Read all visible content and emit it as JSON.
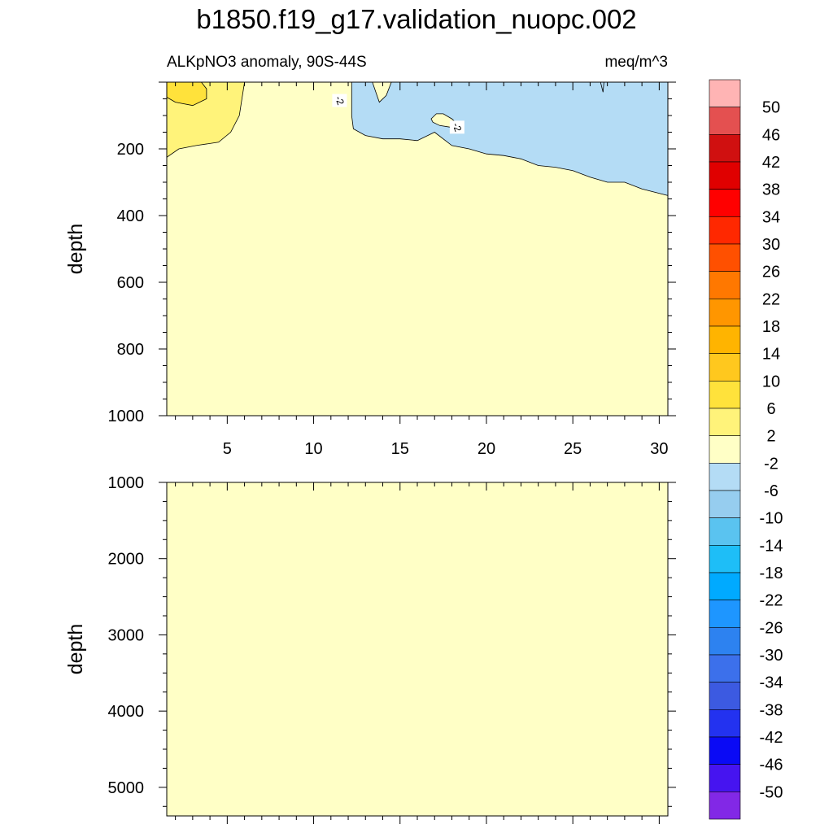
{
  "title": "b1850.f19_g17.validation_nuopc.002",
  "chart_data": {
    "type": "heatmap",
    "title": "b1850.f19_g17.validation_nuopc.002",
    "subtitle_left": "ALKpNO3 anomaly, 90S-44S",
    "subtitle_right": "meq/m^3",
    "colors": {
      "pale_yellow": "#ffffc6",
      "light_yellow": "#fff37a",
      "yellow": "#ffe23b",
      "light_blue": "#b4dcf5",
      "contour": "#000000"
    },
    "panels": [
      {
        "name": "upper",
        "ylabel": "depth",
        "xlim": [
          1.5,
          30.5
        ],
        "ylim": [
          0,
          1000
        ],
        "y_inverted": true,
        "xticks": [
          5,
          10,
          15,
          20,
          25,
          30
        ],
        "xtick_labels": [
          "5",
          "10",
          "15",
          "20",
          "25",
          "30"
        ],
        "yticks": [
          200,
          400,
          600,
          800,
          1000
        ],
        "ytick_labels": [
          "200",
          "400",
          "600",
          "800",
          "1000"
        ],
        "background_range": "-2 to 2",
        "contour_labels": [
          {
            "text": "-2",
            "x": 11.5,
            "y": 55
          },
          {
            "text": "-2",
            "x": 18.3,
            "y": 135
          }
        ],
        "regions": [
          {
            "range": "-6 to -2",
            "points": [
              [
                12.2,
                0
              ],
              [
                30.5,
                0
              ],
              [
                30.5,
                340
              ],
              [
                29,
                320
              ],
              [
                28,
                300
              ],
              [
                27,
                300
              ],
              [
                26,
                285
              ],
              [
                25,
                265
              ],
              [
                24,
                255
              ],
              [
                23,
                250
              ],
              [
                22,
                230
              ],
              [
                21,
                220
              ],
              [
                20,
                215
              ],
              [
                19,
                200
              ],
              [
                18,
                190
              ],
              [
                17,
                150
              ],
              [
                16,
                175
              ],
              [
                15,
                170
              ],
              [
                14,
                170
              ],
              [
                13,
                160
              ],
              [
                12.3,
                140
              ],
              [
                12.2,
                100
              ]
            ]
          },
          {
            "range": "-2 to 2",
            "points": [
              [
                13.4,
                0
              ],
              [
                14.5,
                0
              ],
              [
                14.2,
                40
              ],
              [
                13.8,
                60
              ],
              [
                13.6,
                30
              ]
            ]
          },
          {
            "range": "-2 to 2",
            "points": [
              [
                16.8,
                110
              ],
              [
                17.1,
                95
              ],
              [
                17.5,
                95
              ],
              [
                18.0,
                110
              ],
              [
                18.3,
                125
              ],
              [
                17.9,
                135
              ],
              [
                17.3,
                130
              ],
              [
                16.9,
                120
              ]
            ]
          },
          {
            "range": "2 to 6",
            "points": [
              [
                1.5,
                0
              ],
              [
                6.0,
                0
              ],
              [
                5.7,
                100
              ],
              [
                5.2,
                150
              ],
              [
                4.5,
                180
              ],
              [
                3.2,
                190
              ],
              [
                2.2,
                200
              ],
              [
                1.5,
                225
              ]
            ]
          },
          {
            "range": "6 to 10",
            "points": [
              [
                1.5,
                0
              ],
              [
                3.5,
                0
              ],
              [
                3.8,
                20
              ],
              [
                3.8,
                50
              ],
              [
                3.0,
                70
              ],
              [
                2.0,
                60
              ],
              [
                1.5,
                45
              ]
            ]
          },
          {
            "range": "-6 to -2",
            "points": [
              [
                26.6,
                0
              ],
              [
                26.8,
                0
              ],
              [
                26.75,
                30
              ]
            ]
          }
        ]
      },
      {
        "name": "lower",
        "ylabel": "depth",
        "xlim": [
          1.5,
          30.5
        ],
        "ylim": [
          1000,
          5375
        ],
        "y_inverted": true,
        "xticks": [
          5,
          10,
          15,
          20,
          25,
          30
        ],
        "yticks": [
          1000,
          2000,
          3000,
          4000,
          5000
        ],
        "ytick_labels": [
          "1000",
          "2000",
          "3000",
          "4000",
          "5000"
        ],
        "background_range": "-2 to 2",
        "regions": []
      }
    ],
    "colorbar": {
      "levels": [
        "50",
        "46",
        "42",
        "38",
        "34",
        "30",
        "26",
        "22",
        "18",
        "14",
        "10",
        "6",
        "2",
        "-2",
        "-6",
        "-10",
        "-14",
        "-18",
        "-22",
        "-26",
        "-30",
        "-34",
        "-38",
        "-42",
        "-46",
        "-50"
      ],
      "colors": [
        "#ffb4b4",
        "#e45050",
        "#d01010",
        "#e00000",
        "#ff0000",
        "#ff2800",
        "#ff5000",
        "#ff7800",
        "#ff9600",
        "#ffb400",
        "#ffc81e",
        "#ffe23b",
        "#fff37a",
        "#ffffc6",
        "#b4dcf5",
        "#96cdef",
        "#5ac3f0",
        "#1ebef7",
        "#00aaff",
        "#1e96ff",
        "#2d82f0",
        "#3c70eb",
        "#3c5ae1",
        "#2332f0",
        "#0a0af5",
        "#4614f0",
        "#8228e6"
      ]
    }
  }
}
